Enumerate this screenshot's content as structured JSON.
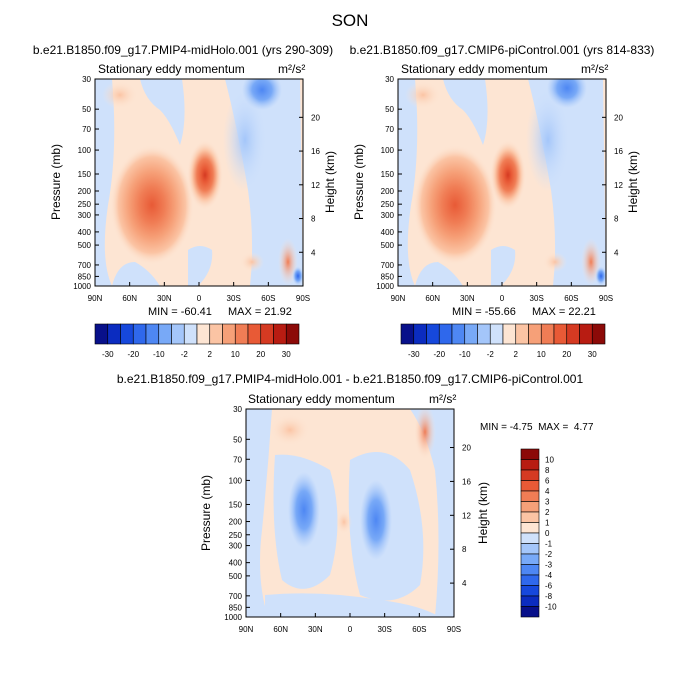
{
  "figure": {
    "title": "SON"
  },
  "colors": {
    "neg": [
      "#08108a",
      "#0b2cc0",
      "#1648dc",
      "#2f68ec",
      "#4e87f3",
      "#78a9f7",
      "#a4c6fa",
      "#cfe1fb"
    ],
    "pos": [
      "#fde5d3",
      "#fbc4a4",
      "#f6a078",
      "#f07d55",
      "#e85a36",
      "#d53a22",
      "#b81c12",
      "#8c0a08"
    ],
    "frame": "#000000"
  },
  "chart_data": [
    {
      "type": "contour",
      "id": "top-left",
      "title": "b.e21.B1850.f09_g17.PMIP4-midHolo.001 (yrs 290-309)",
      "left_label": "Stationary eddy momentum",
      "units_label": "m²/s²",
      "xlabel": "",
      "ylabel": "Pressure (mb)",
      "y2label": "Height (km)",
      "xticks": [
        "90N",
        "60N",
        "30N",
        "0",
        "30S",
        "60S",
        "90S"
      ],
      "yticks": [
        "30",
        "50",
        "70",
        "100",
        "150",
        "200",
        "250",
        "300",
        "400",
        "500",
        "700",
        "850",
        "1000"
      ],
      "y2ticks": [
        "20",
        "16",
        "12",
        "8",
        "4"
      ],
      "ylim": [
        1000,
        30
      ],
      "xlim": [
        90,
        -90
      ],
      "min_label": "MIN = -60.41",
      "max_label": "MAX = 21.92",
      "min": -60.41,
      "max": 21.92,
      "features": [
        {
          "lat": 37,
          "p": 220,
          "value": 22,
          "sign": "pos"
        },
        {
          "lat": -8,
          "p": 150,
          "value": 20,
          "sign": "pos"
        },
        {
          "lat": -60,
          "p": 35,
          "value": -12,
          "sign": "neg"
        },
        {
          "lat": -47,
          "p": 120,
          "value": -3,
          "sign": "neg"
        },
        {
          "lat": -72,
          "p": 750,
          "value": 6,
          "sign": "pos"
        },
        {
          "lat": -86,
          "p": 900,
          "value": -60.41,
          "sign": "neg"
        }
      ]
    },
    {
      "type": "contour",
      "id": "top-right",
      "title": "b.e21.B1850.f09_g17.CMIP6-piControl.001 (yrs 814-833)",
      "left_label": "Stationary eddy momentum",
      "units_label": "m²/s²",
      "xlabel": "",
      "ylabel": "Pressure (mb)",
      "y2label": "Height (km)",
      "xticks": [
        "90N",
        "60N",
        "30N",
        "0",
        "30S",
        "60S",
        "90S"
      ],
      "yticks": [
        "30",
        "50",
        "70",
        "100",
        "150",
        "200",
        "250",
        "300",
        "400",
        "500",
        "700",
        "850",
        "1000"
      ],
      "y2ticks": [
        "20",
        "16",
        "12",
        "8",
        "4"
      ],
      "ylim": [
        1000,
        30
      ],
      "xlim": [
        90,
        -90
      ],
      "min_label": "MIN = -55.66",
      "max_label": "MAX = 22.21",
      "min": -55.66,
      "max": 22.21,
      "features": [
        {
          "lat": 37,
          "p": 220,
          "value": 22,
          "sign": "pos"
        },
        {
          "lat": -8,
          "p": 150,
          "value": 21,
          "sign": "pos"
        },
        {
          "lat": -60,
          "p": 35,
          "value": -12,
          "sign": "neg"
        },
        {
          "lat": -47,
          "p": 120,
          "value": -3,
          "sign": "neg"
        },
        {
          "lat": -72,
          "p": 750,
          "value": 6,
          "sign": "pos"
        },
        {
          "lat": -86,
          "p": 900,
          "value": -55.66,
          "sign": "neg"
        }
      ]
    },
    {
      "type": "contour",
      "id": "difference",
      "title": "b.e21.B1850.f09_g17.PMIP4-midHolo.001 - b.e21.B1850.f09_g17.CMIP6-piControl.001",
      "left_label": "Stationary eddy momentum",
      "units_label": "m²/s²",
      "xlabel": "",
      "ylabel": "Pressure (mb)",
      "y2label": "Height (km)",
      "xticks": [
        "90N",
        "60N",
        "30N",
        "0",
        "30S",
        "60S",
        "90S"
      ],
      "yticks": [
        "30",
        "50",
        "70",
        "100",
        "150",
        "200",
        "250",
        "300",
        "400",
        "500",
        "700",
        "850",
        "1000"
      ],
      "y2ticks": [
        "20",
        "16",
        "12",
        "8",
        "4"
      ],
      "ylim": [
        1000,
        30
      ],
      "xlim": [
        90,
        -90
      ],
      "minmax_label": "MIN = -4.75  MAX =  4.77",
      "min": -4.75,
      "max": 4.77,
      "features": [
        {
          "lat": 40,
          "p": 200,
          "value": -3,
          "sign": "neg"
        },
        {
          "lat": -22,
          "p": 220,
          "value": -3,
          "sign": "neg"
        },
        {
          "lat": -65,
          "p": 35,
          "value": 4.77,
          "sign": "pos"
        },
        {
          "lat": 5,
          "p": 210,
          "value": 1,
          "sign": "pos"
        },
        {
          "lat": -45,
          "p": 600,
          "value": -1,
          "sign": "neg"
        }
      ]
    }
  ],
  "colorbars": {
    "horizontal": {
      "levels": [
        "-30",
        "-20",
        "-10",
        "-2",
        "2",
        "10",
        "20",
        "30"
      ],
      "ticks": [
        "-30",
        "-20",
        "-10",
        "-2",
        "2",
        "10",
        "20",
        "30"
      ]
    },
    "vertical": {
      "levels": [
        "10",
        "8",
        "6",
        "4",
        "3",
        "2",
        "1",
        "0",
        "-1",
        "-2",
        "-3",
        "-4",
        "-6",
        "-8",
        "-10"
      ]
    }
  }
}
